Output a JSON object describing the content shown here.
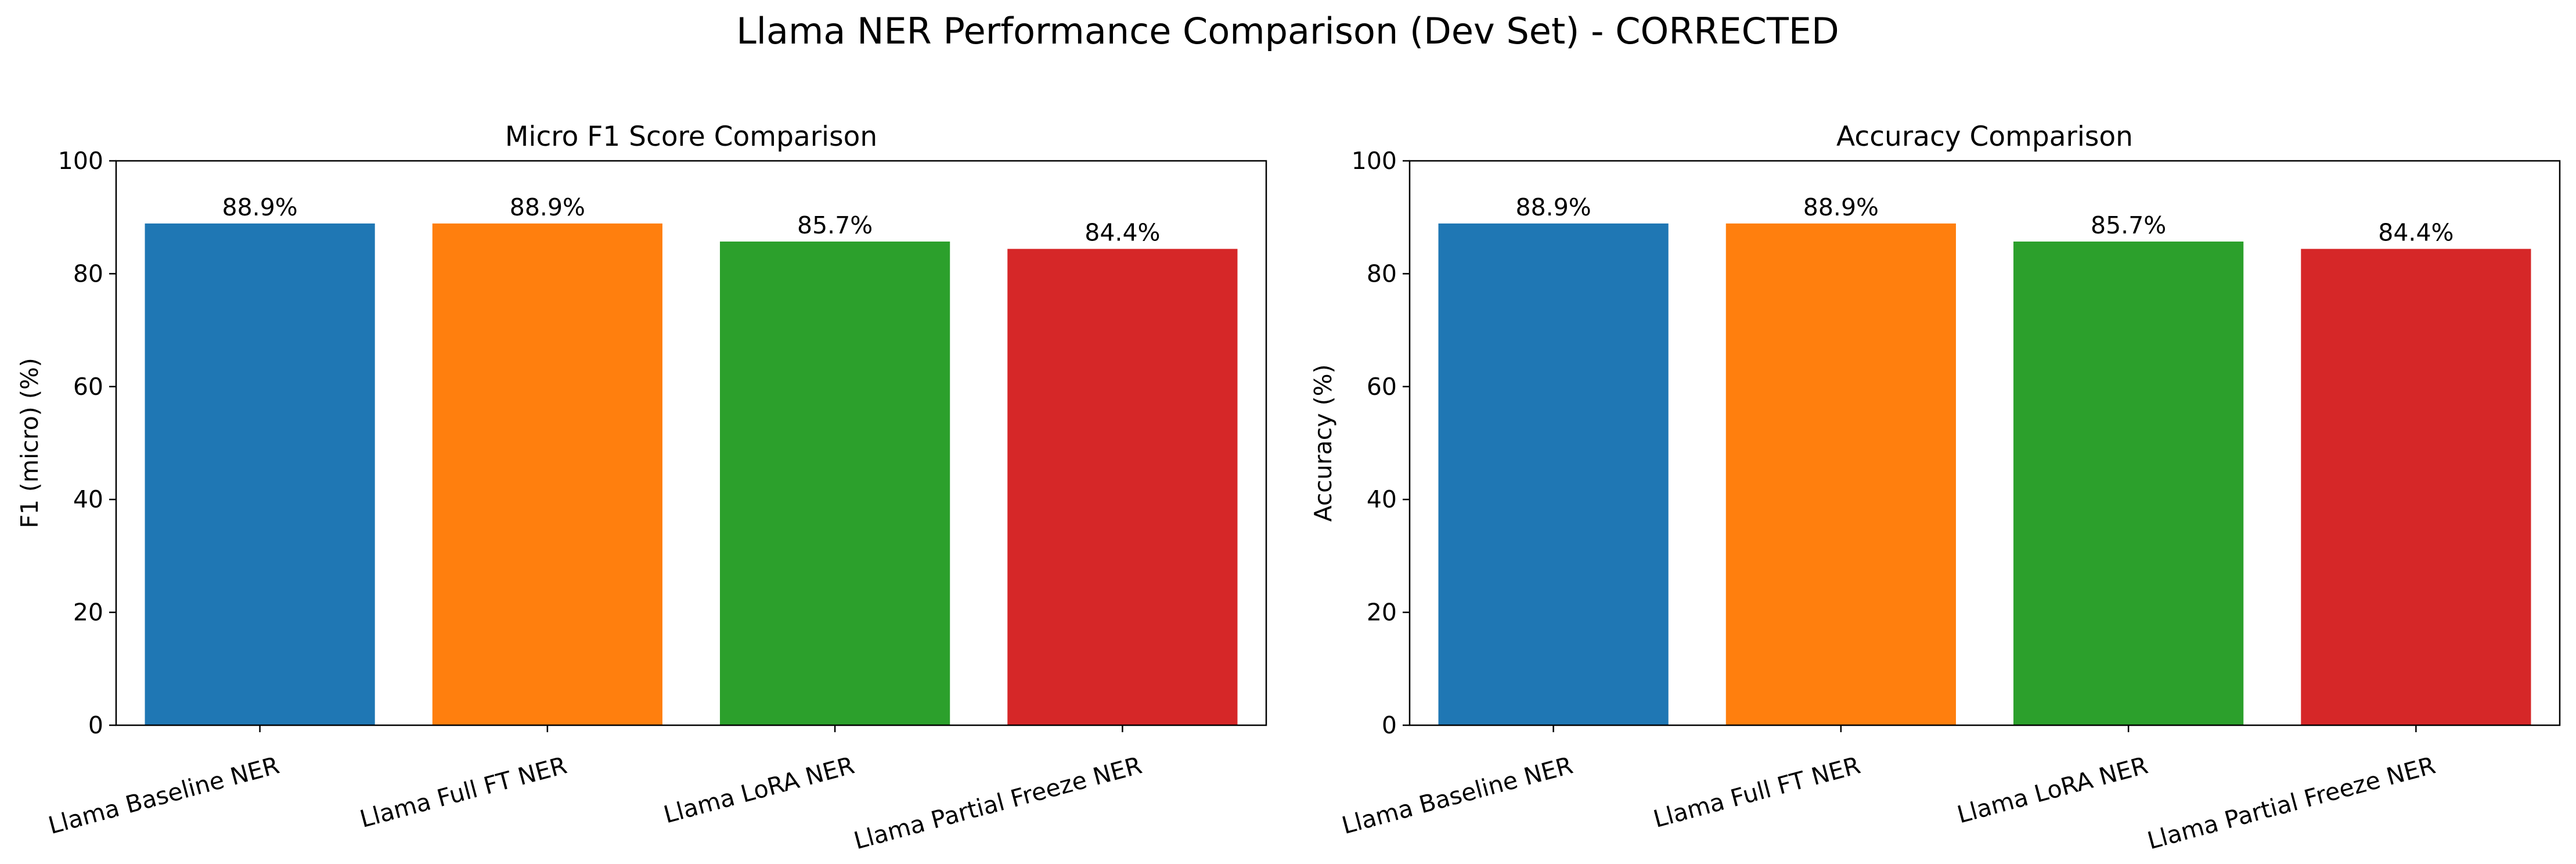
{
  "figure": {
    "title": "Llama NER Performance Comparison (Dev Set) - CORRECTED"
  },
  "chart_data": [
    {
      "type": "bar",
      "title": "Micro F1 Score Comparison",
      "xlabel": "",
      "ylabel": "F1 (micro) (%)",
      "categories": [
        "Llama Baseline NER",
        "Llama Full FT NER",
        "Llama LoRA NER",
        "Llama Partial Freeze NER"
      ],
      "values": [
        88.9,
        88.9,
        85.7,
        84.4
      ],
      "value_labels": [
        "88.9%",
        "88.9%",
        "85.7%",
        "84.4%"
      ],
      "colors": [
        "#1f77b4",
        "#ff7f0e",
        "#2ca02c",
        "#d62728"
      ],
      "ylim": [
        0,
        100
      ],
      "yticks": [
        0,
        20,
        40,
        60,
        80,
        100
      ],
      "grid": false,
      "legend": "none"
    },
    {
      "type": "bar",
      "title": "Accuracy Comparison",
      "xlabel": "",
      "ylabel": "Accuracy (%)",
      "categories": [
        "Llama Baseline NER",
        "Llama Full FT NER",
        "Llama LoRA NER",
        "Llama Partial Freeze NER"
      ],
      "values": [
        88.9,
        88.9,
        85.7,
        84.4
      ],
      "value_labels": [
        "88.9%",
        "88.9%",
        "85.7%",
        "84.4%"
      ],
      "colors": [
        "#1f77b4",
        "#ff7f0e",
        "#2ca02c",
        "#d62728"
      ],
      "ylim": [
        0,
        100
      ],
      "yticks": [
        0,
        20,
        40,
        60,
        80,
        100
      ],
      "grid": false,
      "legend": "none"
    }
  ]
}
